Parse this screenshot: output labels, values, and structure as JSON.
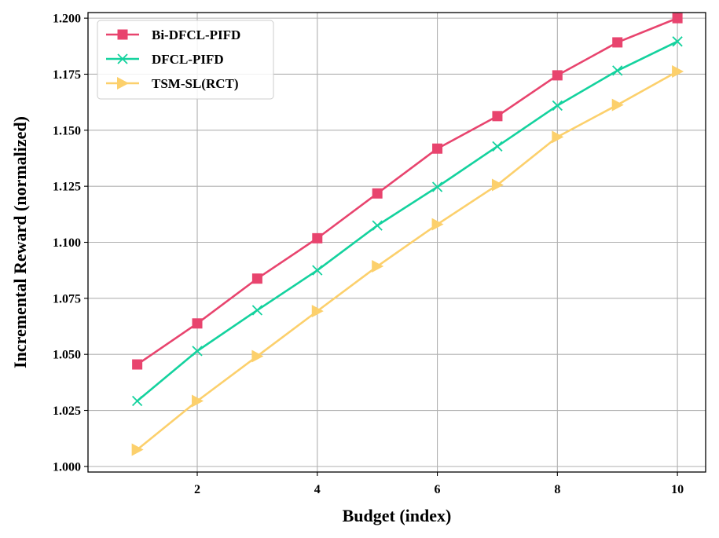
{
  "chart_data": {
    "type": "line",
    "xlabel": "Budget (index)",
    "ylabel": "Incremental Reward (normalized)",
    "x": [
      1,
      2,
      3,
      4,
      5,
      6,
      7,
      8,
      9,
      10
    ],
    "xlim": [
      0.18,
      10.47
    ],
    "ylim": [
      0.9975,
      1.2025
    ],
    "xticks": [
      2,
      4,
      6,
      8,
      10
    ],
    "xtick_labels": [
      "2",
      "4",
      "6",
      "8",
      "10"
    ],
    "yticks": [
      1.0,
      1.025,
      1.05,
      1.075,
      1.1,
      1.125,
      1.15,
      1.175,
      1.2
    ],
    "ytick_labels": [
      "1.000",
      "1.025",
      "1.050",
      "1.075",
      "1.100",
      "1.125",
      "1.150",
      "1.175",
      "1.200"
    ],
    "grid": true,
    "legend_position": "top-left",
    "series": [
      {
        "name": "Bi-DFCL-PIFD",
        "color": "#e8446e",
        "marker": "square",
        "values": [
          1.0455,
          1.0638,
          1.0838,
          1.1018,
          1.1218,
          1.1418,
          1.1563,
          1.1745,
          1.1892,
          1.2
        ]
      },
      {
        "name": "DFCL-PIFD",
        "color": "#14d29e",
        "marker": "x",
        "values": [
          1.0292,
          1.0515,
          1.0697,
          1.0875,
          1.1075,
          1.1247,
          1.1428,
          1.161,
          1.1766,
          1.1896
        ]
      },
      {
        "name": "TSM-SL(RCT)",
        "color": "#fcd06c",
        "marker": "triangle-right",
        "values": [
          1.0075,
          1.0292,
          1.0492,
          1.0693,
          1.0893,
          1.108,
          1.1256,
          1.147,
          1.1613,
          1.1762
        ]
      }
    ]
  }
}
